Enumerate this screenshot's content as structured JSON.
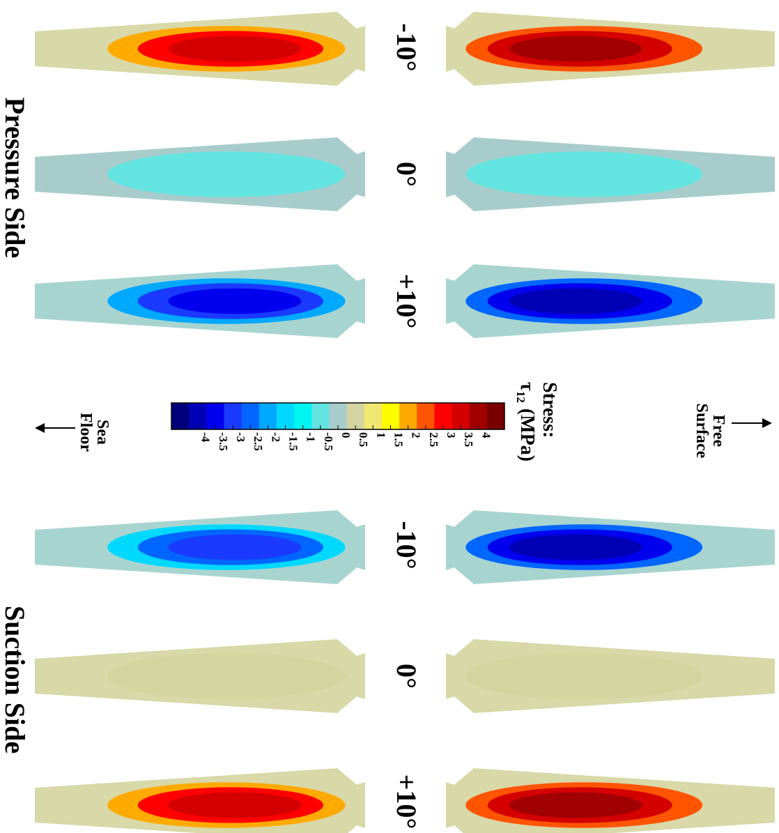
{
  "section_titles": {
    "pressure": "Pressure Side",
    "suction": "Suction Side"
  },
  "angle_labels": {
    "pressure": [
      "-10°",
      "0°",
      "+10°"
    ],
    "suction": [
      "-10°",
      "0°",
      "+10°"
    ]
  },
  "colorbar": {
    "title_line1": "Stress:",
    "title_line2": "τ",
    "title_sub": "12",
    "title_unit": "(MPa)",
    "ticks": [
      "-4",
      "-3.5",
      "-3",
      "-2.5",
      "-2",
      "-1.5",
      "-1",
      "-0.5",
      "0",
      "0.5",
      "1",
      "1.5",
      "2",
      "2.5",
      "3",
      "3.5",
      "4"
    ],
    "colors": [
      "#00007a",
      "#0000b4",
      "#0000ee",
      "#1a3aff",
      "#0066ff",
      "#00a8ff",
      "#00d8ff",
      "#00f4f0",
      "#64e4e0",
      "#a8cccc",
      "#d4d4a0",
      "#f0e870",
      "#ffff00",
      "#ffaa00",
      "#ff5500",
      "#ff0000",
      "#d40000",
      "#a00000",
      "#780000"
    ]
  },
  "direction_labels": {
    "free_surface_line1": "Free",
    "free_surface_line2": "Surface",
    "sea_floor_line1": "Sea",
    "sea_floor_line2": "Floor"
  },
  "blades": [
    {
      "side": "pressure",
      "angle": "-10°",
      "face": "outer",
      "levels": [
        2,
        3,
        3.5
      ]
    },
    {
      "side": "pressure",
      "angle": "-10°",
      "face": "inner",
      "levels": [
        2.5,
        3.5,
        4
      ]
    },
    {
      "side": "pressure",
      "angle": "0°",
      "face": "outer",
      "levels": [
        -0.5
      ]
    },
    {
      "side": "pressure",
      "angle": "0°",
      "face": "inner",
      "levels": [
        -0.5
      ]
    },
    {
      "side": "pressure",
      "angle": "+10°",
      "face": "outer",
      "levels": [
        -2,
        -3,
        -3.5
      ]
    },
    {
      "side": "pressure",
      "angle": "+10°",
      "face": "inner",
      "levels": [
        -2.5,
        -3.5,
        -4
      ]
    },
    {
      "side": "suction",
      "angle": "-10°",
      "face": "outer",
      "levels": [
        -1.5,
        -2.5,
        -3
      ]
    },
    {
      "side": "suction",
      "angle": "-10°",
      "face": "inner",
      "levels": [
        -2.5,
        -3.5,
        -4
      ]
    },
    {
      "side": "suction",
      "angle": "0°",
      "face": "outer",
      "levels": [
        0.5
      ]
    },
    {
      "side": "suction",
      "angle": "0°",
      "face": "inner",
      "levels": [
        0.5
      ]
    },
    {
      "side": "suction",
      "angle": "+10°",
      "face": "outer",
      "levels": [
        2,
        3,
        3.5
      ]
    },
    {
      "side": "suction",
      "angle": "+10°",
      "face": "inner",
      "levels": [
        2.5,
        3.5,
        4
      ]
    }
  ]
}
